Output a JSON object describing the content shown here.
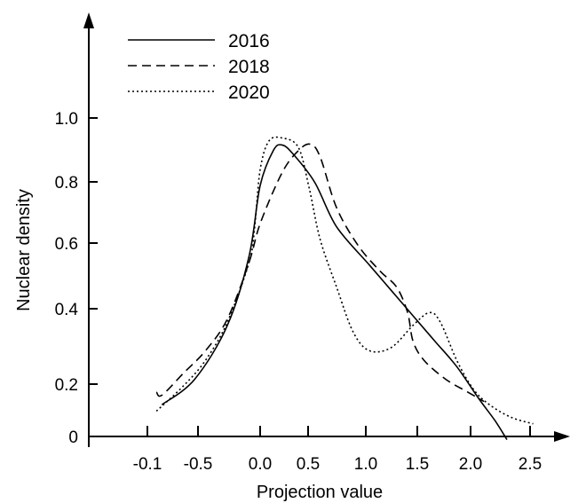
{
  "chart_data": {
    "type": "line",
    "title": "",
    "xlabel": "Projection value",
    "ylabel": "Nuclear density",
    "x_tick_labels": [
      "-0.1",
      "-0.5",
      "0.0",
      "0.5",
      "1.0",
      "1.5",
      "2.0",
      "2.5"
    ],
    "y_tick_labels": [
      "0",
      "0.2",
      "0.4",
      "0.6",
      "0.8",
      "1.0"
    ],
    "legend": {
      "placement": "top-left"
    },
    "grid": false,
    "series": [
      {
        "name": "2016",
        "style": "solid",
        "points": [
          [
            -0.9,
            0.1
          ],
          [
            -0.6,
            0.18
          ],
          [
            -0.3,
            0.35
          ],
          [
            -0.1,
            0.57
          ],
          [
            0.0,
            0.79
          ],
          [
            0.12,
            0.9
          ],
          [
            0.2,
            0.918
          ],
          [
            0.3,
            0.89
          ],
          [
            0.5,
            0.8
          ],
          [
            0.7,
            0.66
          ],
          [
            1.0,
            0.54
          ],
          [
            1.2,
            0.46
          ],
          [
            1.4,
            0.38
          ],
          [
            1.6,
            0.3
          ],
          [
            1.8,
            0.22
          ],
          [
            2.0,
            0.12
          ],
          [
            2.15,
            0.05
          ],
          [
            2.26,
            -0.01
          ]
        ]
      },
      {
        "name": "2018",
        "style": "dashed",
        "points": [
          [
            -0.95,
            0.14
          ],
          [
            -0.9,
            0.13
          ],
          [
            -0.7,
            0.2
          ],
          [
            -0.5,
            0.27
          ],
          [
            -0.3,
            0.37
          ],
          [
            -0.1,
            0.55
          ],
          [
            0.0,
            0.67
          ],
          [
            0.2,
            0.83
          ],
          [
            0.35,
            0.9
          ],
          [
            0.46,
            0.92
          ],
          [
            0.55,
            0.88
          ],
          [
            0.7,
            0.72
          ],
          [
            0.9,
            0.6
          ],
          [
            1.1,
            0.52
          ],
          [
            1.25,
            0.47
          ],
          [
            1.35,
            0.39
          ],
          [
            1.4,
            0.3
          ],
          [
            1.5,
            0.24
          ],
          [
            1.7,
            0.18
          ],
          [
            1.9,
            0.14
          ],
          [
            2.05,
            0.11
          ]
        ]
      },
      {
        "name": "2020",
        "style": "dotted",
        "points": [
          [
            -0.95,
            0.08
          ],
          [
            -0.7,
            0.16
          ],
          [
            -0.5,
            0.24
          ],
          [
            -0.3,
            0.36
          ],
          [
            -0.1,
            0.55
          ],
          [
            -0.05,
            0.66
          ],
          [
            0.0,
            0.84
          ],
          [
            0.08,
            0.93
          ],
          [
            0.2,
            0.94
          ],
          [
            0.35,
            0.91
          ],
          [
            0.45,
            0.78
          ],
          [
            0.55,
            0.62
          ],
          [
            0.7,
            0.47
          ],
          [
            0.85,
            0.33
          ],
          [
            1.0,
            0.27
          ],
          [
            1.2,
            0.28
          ],
          [
            1.4,
            0.35
          ],
          [
            1.55,
            0.39
          ],
          [
            1.65,
            0.36
          ],
          [
            1.8,
            0.24
          ],
          [
            1.95,
            0.15
          ],
          [
            2.1,
            0.1
          ],
          [
            2.3,
            0.06
          ],
          [
            2.5,
            0.04
          ]
        ]
      }
    ]
  }
}
